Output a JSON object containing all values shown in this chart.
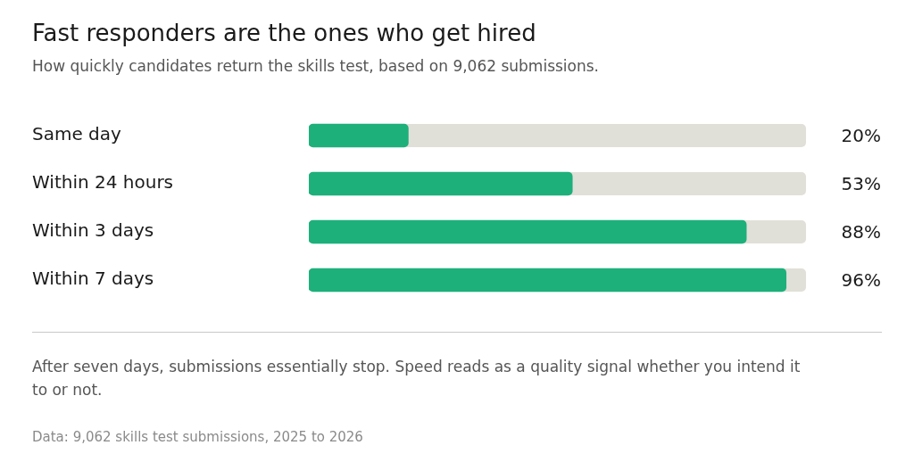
{
  "chart_data": {
    "type": "bar",
    "orientation": "horizontal",
    "title": "Fast responders are the ones who get hired",
    "subtitle": "How quickly candidates return the skills test, based on 9,062 submissions.",
    "categories": [
      "Same day",
      "Within 24 hours",
      "Within 3 days",
      "Within 7 days"
    ],
    "values": [
      20,
      53,
      88,
      96
    ],
    "value_labels": [
      "20%",
      "53%",
      "88%",
      "96%"
    ],
    "color": "#1db07b",
    "xlim": [
      0,
      100
    ],
    "tick_labels": "y",
    "legend": false,
    "annotations": [
      "After seven days, submissions essentially stop. Speed reads as a quality signal whether you intend it to or not.",
      "Data: 9,062 skills test submissions, 2025 to 2026"
    ]
  }
}
